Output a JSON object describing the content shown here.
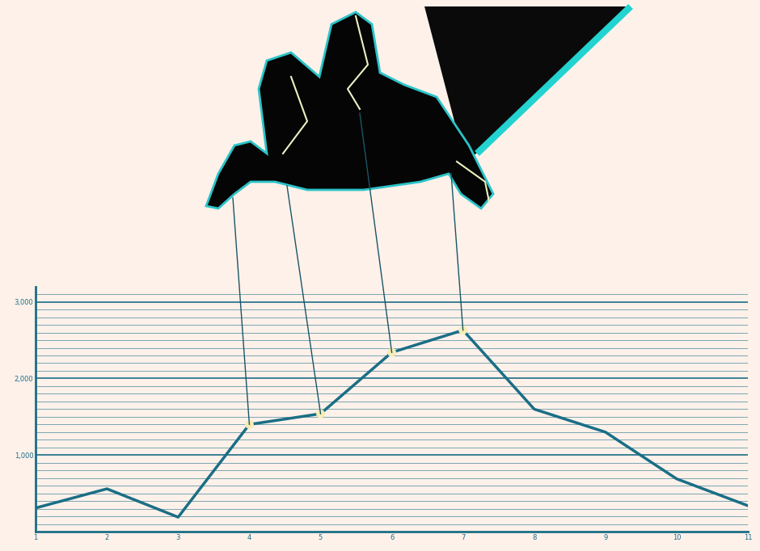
{
  "chart_data": {
    "type": "line",
    "x": [
      1,
      2,
      3,
      4,
      5,
      6,
      7,
      8,
      9,
      10,
      11
    ],
    "series": [
      {
        "type": "line",
        "color": "#1a6e86",
        "line_style": "solid",
        "values": [
          310,
          560,
          190,
          1400,
          1540,
          2340,
          2630,
          1600,
          1300,
          690,
          340
        ]
      },
      {
        "type": "scatter",
        "color": "#f7ecb5",
        "marker": "o",
        "values": [
          null,
          null,
          null,
          1400,
          1540,
          2340,
          2630,
          null,
          null,
          null,
          null
        ]
      }
    ],
    "xlim": [
      1,
      11
    ],
    "xticks": [
      1,
      2,
      3,
      4,
      5,
      6,
      7,
      8,
      9,
      10,
      11
    ],
    "ylim": [
      0,
      3200
    ],
    "yticks": [
      {
        "value": 1000,
        "label": "1,000"
      },
      {
        "value": 2000,
        "label": "2,000"
      },
      {
        "value": 3000,
        "label": "3,000"
      }
    ],
    "grid": true
  }
}
